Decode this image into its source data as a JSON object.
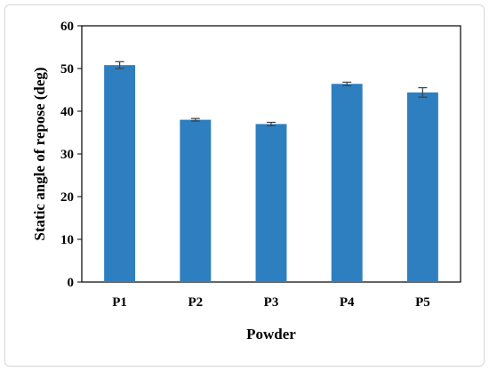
{
  "chart_data": {
    "type": "bar",
    "title": "",
    "xlabel": "Powder",
    "ylabel": "Static angle of repose (deg)",
    "categories": [
      "P1",
      "P2",
      "P3",
      "P4",
      "P5"
    ],
    "values": [
      50.8,
      38.0,
      37.0,
      46.4,
      44.4
    ],
    "errors": [
      0.8,
      0.3,
      0.4,
      0.4,
      1.1
    ],
    "ylim": [
      0,
      60
    ],
    "yticks": [
      "0",
      "10",
      "20",
      "30",
      "40",
      "50",
      "60"
    ],
    "grid": false,
    "legend": "none",
    "bar_color": "#2e7fc0",
    "error_color": "#404040"
  }
}
